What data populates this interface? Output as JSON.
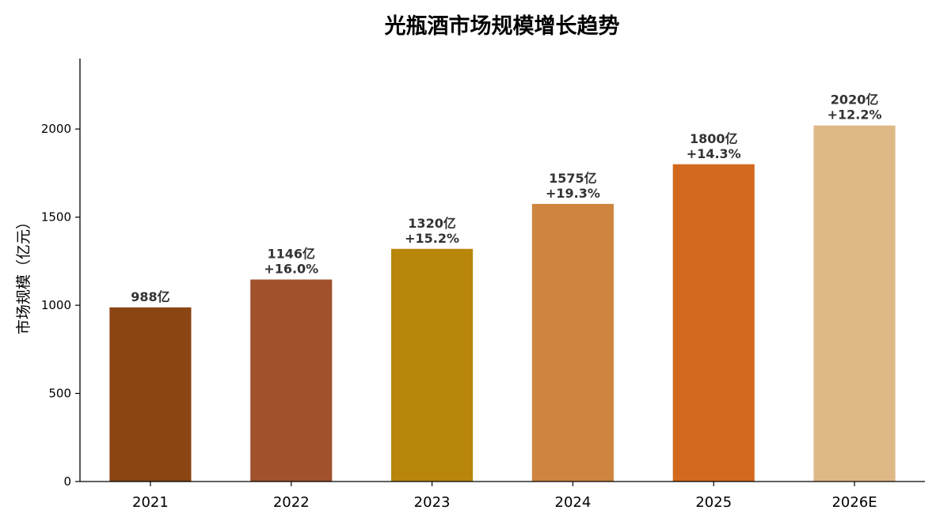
{
  "chart_data": {
    "type": "bar",
    "title": "光瓶酒市场规模增长趋势",
    "xlabel": "",
    "ylabel": "市场规模（亿元）",
    "categories": [
      "2021",
      "2022",
      "2023",
      "2024",
      "2025",
      "2026E"
    ],
    "values": [
      988,
      1146,
      1320,
      1575,
      1800,
      2020
    ],
    "value_labels": [
      "988亿",
      "1146亿",
      "1320亿",
      "1575亿",
      "1800亿",
      "2020亿"
    ],
    "growth_labels": [
      "",
      "+16.0%",
      "+15.2%",
      "+19.3%",
      "+14.3%",
      "+12.2%"
    ],
    "colors": [
      "#8B4513",
      "#A0522D",
      "#B8860B",
      "#CD853F",
      "#D2691E",
      "#DEB887"
    ],
    "ylim": [
      0,
      2400
    ],
    "yticks": [
      0,
      500,
      1000,
      1500,
      2000
    ],
    "ytick_labels": [
      "0",
      "500",
      "1000",
      "1500",
      "2000"
    ],
    "grid": false
  }
}
